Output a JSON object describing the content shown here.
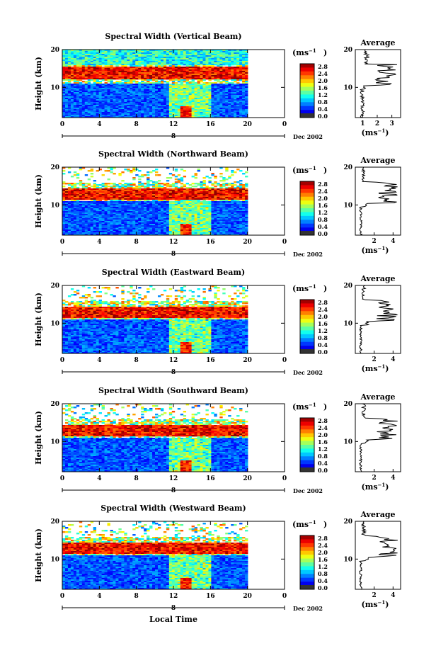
{
  "layout_note_free": true,
  "common": {
    "ylabel": "Height (km)",
    "y_ticks": [
      "20",
      "10"
    ],
    "x_ticks": [
      "0",
      "4",
      "8",
      "12",
      "16",
      "20",
      "0"
    ],
    "date_label": "Dec 2002",
    "axis_date_mark": "8",
    "units": "(ms",
    "units_exp": "−1",
    "units_close": ")",
    "cbar_ticks": [
      "2.8",
      "2.4",
      "2.0",
      "1.6",
      "1.2",
      "0.8",
      "0.4",
      "0.0"
    ],
    "avg_title": "Average",
    "avg_units": "(ms",
    "xlabel": "Local Time"
  },
  "panels": [
    {
      "title": "Spectral Width (Vertical Beam)",
      "avg_ticks": [
        "1",
        "2",
        "3"
      ],
      "avg_xmax": 3.6,
      "avg_xmin": 0.5
    },
    {
      "title": "Spectral Width (Northward Beam)",
      "avg_ticks": [
        "2",
        "4"
      ],
      "avg_xmax": 4.8,
      "avg_xmin": 0
    },
    {
      "title": "Spectral Width (Eastward Beam)",
      "avg_ticks": [
        "2",
        "4"
      ],
      "avg_xmax": 4.8,
      "avg_xmin": 0
    },
    {
      "title": "Spectral Width (Southward Beam)",
      "avg_ticks": [
        "2",
        "4"
      ],
      "avg_xmax": 4.8,
      "avg_xmin": 0
    },
    {
      "title": "Spectral Width (Westward Beam)",
      "avg_ticks": [
        "2",
        "4"
      ],
      "avg_xmax": 4.8,
      "avg_xmin": 0
    }
  ],
  "chart_data": [
    {
      "type": "heatmap",
      "title": "Spectral Width (Vertical Beam)",
      "xlabel": "",
      "ylabel": "Height (km)",
      "xlim": [
        0,
        24
      ],
      "ylim": [
        2,
        20
      ],
      "colorbar": {
        "label": "(ms-1)",
        "range": [
          0.0,
          2.8
        ]
      }
    },
    {
      "type": "line",
      "title": "Average",
      "xlabel": "(ms-1)",
      "ylim": [
        2,
        20
      ],
      "xticks": [
        1,
        2,
        3
      ]
    },
    {
      "type": "heatmap",
      "title": "Spectral Width (Northward Beam)",
      "xlabel": "",
      "ylabel": "Height (km)",
      "xlim": [
        0,
        24
      ],
      "ylim": [
        2,
        20
      ],
      "colorbar": {
        "label": "(ms-1)",
        "range": [
          0.0,
          2.8
        ]
      }
    },
    {
      "type": "line",
      "title": "Average",
      "xlabel": "(ms-1)",
      "ylim": [
        2,
        20
      ],
      "xticks": [
        2,
        4
      ]
    },
    {
      "type": "heatmap",
      "title": "Spectral Width (Eastward Beam)",
      "xlabel": "",
      "ylabel": "Height (km)",
      "xlim": [
        0,
        24
      ],
      "ylim": [
        2,
        20
      ],
      "colorbar": {
        "label": "(ms-1)",
        "range": [
          0.0,
          2.8
        ]
      }
    },
    {
      "type": "line",
      "title": "Average",
      "xlabel": "(ms-1)",
      "ylim": [
        2,
        20
      ],
      "xticks": [
        2,
        4
      ]
    },
    {
      "type": "heatmap",
      "title": "Spectral Width (Southward Beam)",
      "xlabel": "",
      "ylabel": "Height (km)",
      "xlim": [
        0,
        24
      ],
      "ylim": [
        2,
        20
      ],
      "colorbar": {
        "label": "(ms-1)",
        "range": [
          0.0,
          2.8
        ]
      }
    },
    {
      "type": "line",
      "title": "Average",
      "xlabel": "(ms-1)",
      "ylim": [
        2,
        20
      ],
      "xticks": [
        2,
        4
      ]
    },
    {
      "type": "heatmap",
      "title": "Spectral Width (Westward Beam)",
      "xlabel": "Local Time",
      "ylabel": "Height (km)",
      "xlim": [
        0,
        24
      ],
      "ylim": [
        2,
        20
      ],
      "colorbar": {
        "label": "(ms-1)",
        "range": [
          0.0,
          2.8
        ]
      }
    },
    {
      "type": "line",
      "title": "Average",
      "xlabel": "(ms-1)",
      "ylim": [
        2,
        20
      ],
      "xticks": [
        2,
        4
      ]
    }
  ]
}
